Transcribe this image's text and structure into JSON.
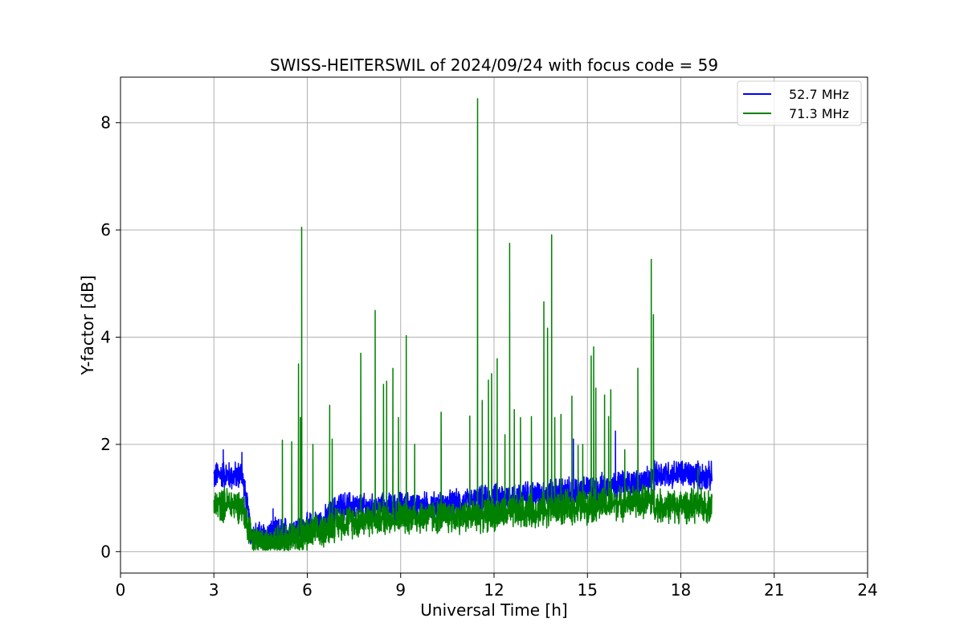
{
  "chart_data": {
    "type": "line",
    "title": "SWISS-HEITERSWIL of 2024/09/24 with focus code = 59",
    "xlabel": "Universal Time [h]",
    "ylabel": "Y-factor [dB]",
    "xlim": [
      0,
      24
    ],
    "ylim": [
      -0.4,
      8.85
    ],
    "xticks": [
      0,
      3,
      6,
      9,
      12,
      15,
      18,
      21,
      24
    ],
    "yticks": [
      0,
      2,
      4,
      6,
      8
    ],
    "grid": true,
    "legend_position": "top-right",
    "series": [
      {
        "name": "52.7 MHz",
        "color": "#0000ff",
        "baseline": [
          [
            3.0,
            1.4
          ],
          [
            3.3,
            1.45
          ],
          [
            3.6,
            1.4
          ],
          [
            3.9,
            1.45
          ],
          [
            4.05,
            0.9
          ],
          [
            4.2,
            0.3
          ],
          [
            4.6,
            0.3
          ],
          [
            5.0,
            0.35
          ],
          [
            5.5,
            0.4
          ],
          [
            6.0,
            0.45
          ],
          [
            6.5,
            0.55
          ],
          [
            7.0,
            0.85
          ],
          [
            7.5,
            0.85
          ],
          [
            8.0,
            0.8
          ],
          [
            9.0,
            0.85
          ],
          [
            10.0,
            0.85
          ],
          [
            11.0,
            0.9
          ],
          [
            12.0,
            1.0
          ],
          [
            13.0,
            1.05
          ],
          [
            14.0,
            1.1
          ],
          [
            15.0,
            1.15
          ],
          [
            16.0,
            1.25
          ],
          [
            17.0,
            1.3
          ],
          [
            17.2,
            1.45
          ],
          [
            18.0,
            1.45
          ],
          [
            19.0,
            1.4
          ]
        ],
        "spikes": [
          [
            3.3,
            1.9
          ],
          [
            3.9,
            1.85
          ],
          [
            14.55,
            2.1
          ],
          [
            15.9,
            2.25
          ],
          [
            4.9,
            0.8
          ],
          [
            6.6,
            0.8
          ]
        ]
      },
      {
        "name": "71.3 MHz",
        "color": "#008000",
        "baseline": [
          [
            3.0,
            0.85
          ],
          [
            3.5,
            0.9
          ],
          [
            3.9,
            0.85
          ],
          [
            4.1,
            0.5
          ],
          [
            4.3,
            0.15
          ],
          [
            4.8,
            0.15
          ],
          [
            5.5,
            0.25
          ],
          [
            6.0,
            0.3
          ],
          [
            6.5,
            0.4
          ],
          [
            7.0,
            0.55
          ],
          [
            8.0,
            0.6
          ],
          [
            9.0,
            0.65
          ],
          [
            10.0,
            0.65
          ],
          [
            11.0,
            0.65
          ],
          [
            12.0,
            0.7
          ],
          [
            13.0,
            0.75
          ],
          [
            14.0,
            0.8
          ],
          [
            15.0,
            0.85
          ],
          [
            16.0,
            0.9
          ],
          [
            17.0,
            0.95
          ],
          [
            17.2,
            0.85
          ],
          [
            18.0,
            0.85
          ],
          [
            19.0,
            0.85
          ]
        ],
        "spikes": [
          [
            5.2,
            2.08
          ],
          [
            5.5,
            2.05
          ],
          [
            5.72,
            3.5
          ],
          [
            5.82,
            6.05
          ],
          [
            5.78,
            2.5
          ],
          [
            6.18,
            2.0
          ],
          [
            6.72,
            2.73
          ],
          [
            6.8,
            2.1
          ],
          [
            7.72,
            3.7
          ],
          [
            8.18,
            4.5
          ],
          [
            8.45,
            3.12
          ],
          [
            8.55,
            3.18
          ],
          [
            8.75,
            3.42
          ],
          [
            8.93,
            2.5
          ],
          [
            9.18,
            4.03
          ],
          [
            9.45,
            2.0
          ],
          [
            10.3,
            2.6
          ],
          [
            11.22,
            2.53
          ],
          [
            11.47,
            8.45
          ],
          [
            11.62,
            2.82
          ],
          [
            11.82,
            3.2
          ],
          [
            11.92,
            3.32
          ],
          [
            12.1,
            3.6
          ],
          [
            12.35,
            2.18
          ],
          [
            12.5,
            5.75
          ],
          [
            12.65,
            2.65
          ],
          [
            12.85,
            2.5
          ],
          [
            13.2,
            2.52
          ],
          [
            13.6,
            4.66
          ],
          [
            13.72,
            4.17
          ],
          [
            13.85,
            5.91
          ],
          [
            13.95,
            2.5
          ],
          [
            14.15,
            2.56
          ],
          [
            14.5,
            2.9
          ],
          [
            14.7,
            1.98
          ],
          [
            14.85,
            2.0
          ],
          [
            15.12,
            3.65
          ],
          [
            15.2,
            3.82
          ],
          [
            15.27,
            3.05
          ],
          [
            15.55,
            2.92
          ],
          [
            15.68,
            2.52
          ],
          [
            15.75,
            3.02
          ],
          [
            16.2,
            1.9
          ],
          [
            16.62,
            3.42
          ],
          [
            17.05,
            5.45
          ],
          [
            17.12,
            4.42
          ],
          [
            18.55,
            1.55
          ]
        ]
      }
    ]
  }
}
